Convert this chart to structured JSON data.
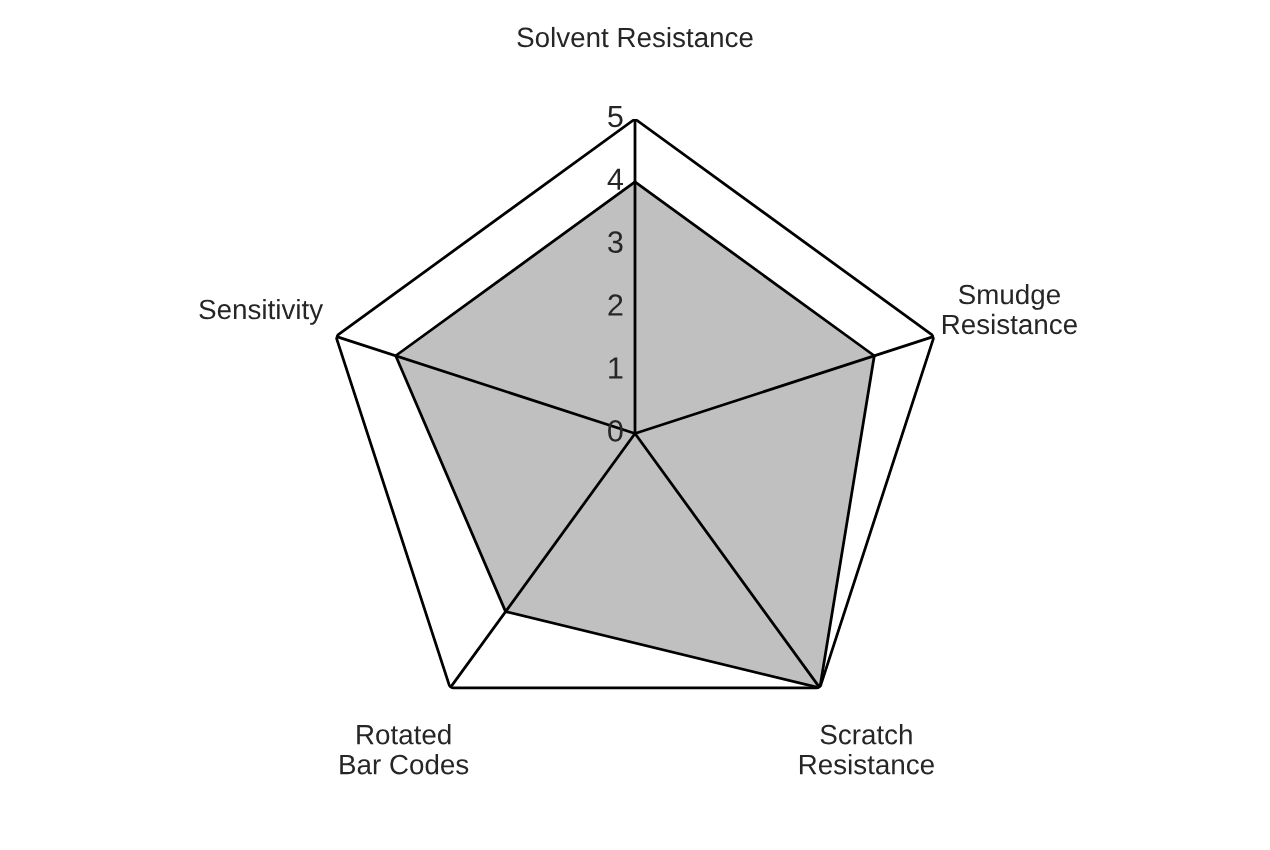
{
  "chart_data": {
    "type": "radar",
    "categories": [
      "Solvent Resistance",
      "Smudge\nResistance",
      "Scratch\nResistance",
      "Rotated\nBar Codes",
      "Sensitivity"
    ],
    "series": [
      {
        "color": "#c0c0c0",
        "values": [
          4,
          4,
          5,
          3.5,
          4
        ]
      }
    ],
    "ylim": [
      0,
      5
    ],
    "yticks": [
      0,
      1,
      2,
      3,
      4,
      5
    ],
    "grid": false
  }
}
